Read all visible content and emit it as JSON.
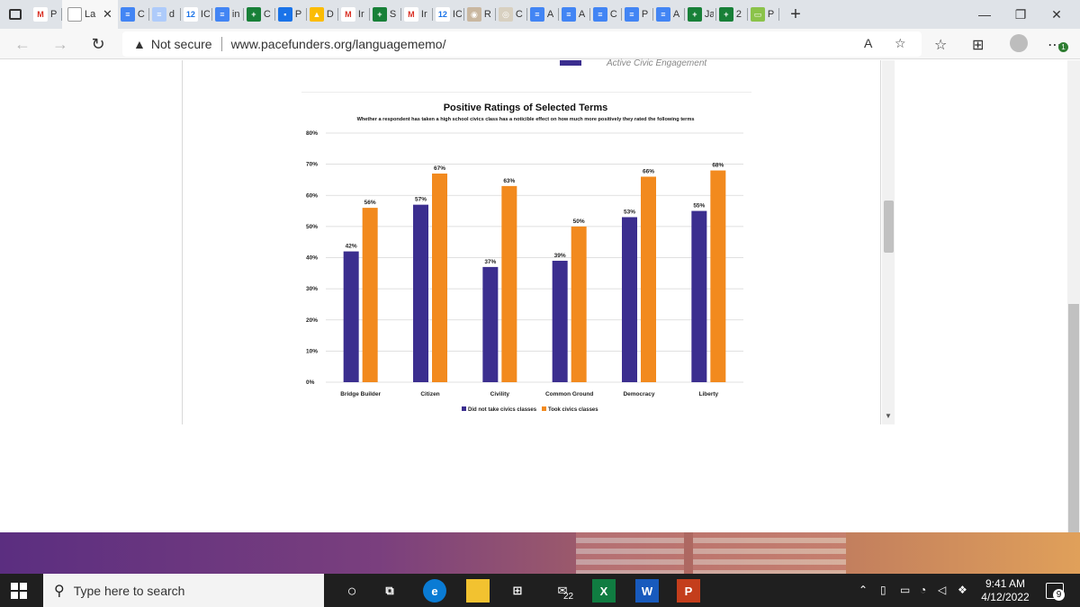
{
  "browser": {
    "tabs": [
      {
        "favicon": "gmail-icon",
        "label": "P",
        "color": "#ffffff",
        "fg": "#d93025",
        "glyph": "M"
      },
      {
        "favicon": "page-icon",
        "label": "La",
        "active": true
      },
      {
        "favicon": "docs-icon",
        "label": "C",
        "color": "#4285f4",
        "glyph": "≡"
      },
      {
        "favicon": "docs-icon",
        "label": "d",
        "color": "#aecbfa",
        "glyph": "≡"
      },
      {
        "favicon": "calendar-icon",
        "label": "IC",
        "color": "#ffffff",
        "fg": "#1a73e8",
        "glyph": "12"
      },
      {
        "favicon": "docs-icon",
        "label": "in",
        "color": "#4285f4",
        "glyph": "≡"
      },
      {
        "favicon": "sheets-icon",
        "label": "C",
        "color": "#188038",
        "glyph": "+"
      },
      {
        "favicon": "meet-icon",
        "label": "P",
        "color": "#1a73e8",
        "glyph": "▪"
      },
      {
        "favicon": "drive-icon",
        "label": "D",
        "color": "#fbbc04",
        "glyph": "▲"
      },
      {
        "favicon": "gmail-icon",
        "label": "Ir",
        "color": "#ffffff",
        "fg": "#d93025",
        "glyph": "M"
      },
      {
        "favicon": "sheets-icon",
        "label": "S",
        "color": "#188038",
        "glyph": "+"
      },
      {
        "favicon": "gmail-icon",
        "label": "Ir",
        "color": "#ffffff",
        "fg": "#d93025",
        "glyph": "M"
      },
      {
        "favicon": "calendar-icon",
        "label": "IC",
        "color": "#ffffff",
        "fg": "#1a73e8",
        "glyph": "12"
      },
      {
        "favicon": "seal-icon",
        "label": "R",
        "color": "#c9b7a0",
        "glyph": "◉"
      },
      {
        "favicon": "seal-icon",
        "label": "C",
        "color": "#d8d0c0",
        "glyph": "◎"
      },
      {
        "favicon": "docs-icon",
        "label": "A",
        "color": "#4285f4",
        "glyph": "≡"
      },
      {
        "favicon": "docs-icon",
        "label": "A",
        "color": "#4285f4",
        "glyph": "≡"
      },
      {
        "favicon": "docs-icon",
        "label": "C",
        "color": "#4285f4",
        "glyph": "≡"
      },
      {
        "favicon": "docs-icon",
        "label": "P",
        "color": "#4285f4",
        "glyph": "≡"
      },
      {
        "favicon": "docs-icon",
        "label": "A",
        "color": "#4285f4",
        "glyph": "≡"
      },
      {
        "favicon": "sheets-icon",
        "label": "Ja",
        "color": "#188038",
        "glyph": "+"
      },
      {
        "favicon": "sheets-icon",
        "label": "2",
        "color": "#188038",
        "glyph": "+"
      },
      {
        "favicon": "pace-icon",
        "label": "P",
        "color": "#8bc34a",
        "glyph": "▭"
      }
    ],
    "new_tab_glyph": "+",
    "minimize_glyph": "—",
    "restore_glyph": "❐",
    "close_glyph": "✕",
    "not_secure": "Not secure",
    "url": "www.pacefunders.org/languagememo/",
    "extension_badge": "1"
  },
  "page": {
    "fragment_legend": "Active Civic Engagement"
  },
  "chart_data": {
    "type": "bar",
    "title": "Positive Ratings of Selected Terms",
    "subtitle": "Whether a respondent has taken a high school civics class has a noticible effect on how much more positively they rated the following terms",
    "categories": [
      "Bridge Builder",
      "Citizen",
      "Civility",
      "Common Ground",
      "Democracy",
      "Liberty"
    ],
    "series": [
      {
        "name": "Did not take civics classes",
        "color": "#3b2e8f",
        "values": [
          42,
          57,
          37,
          39,
          53,
          55
        ]
      },
      {
        "name": "Took civics classes",
        "color": "#f28a1e",
        "values": [
          56,
          67,
          63,
          50,
          66,
          68
        ]
      }
    ],
    "y_ticks": [
      "0%",
      "10%",
      "20%",
      "30%",
      "40%",
      "50%",
      "60%",
      "70%",
      "80%"
    ],
    "ylim": [
      0,
      80
    ],
    "value_suffix": "%",
    "grid": true,
    "legend": "bottom"
  },
  "taskbar": {
    "search_placeholder": "Type here to search",
    "mail_badge": "22",
    "time": "9:41 AM",
    "date": "4/12/2022",
    "notification_count": "9"
  }
}
